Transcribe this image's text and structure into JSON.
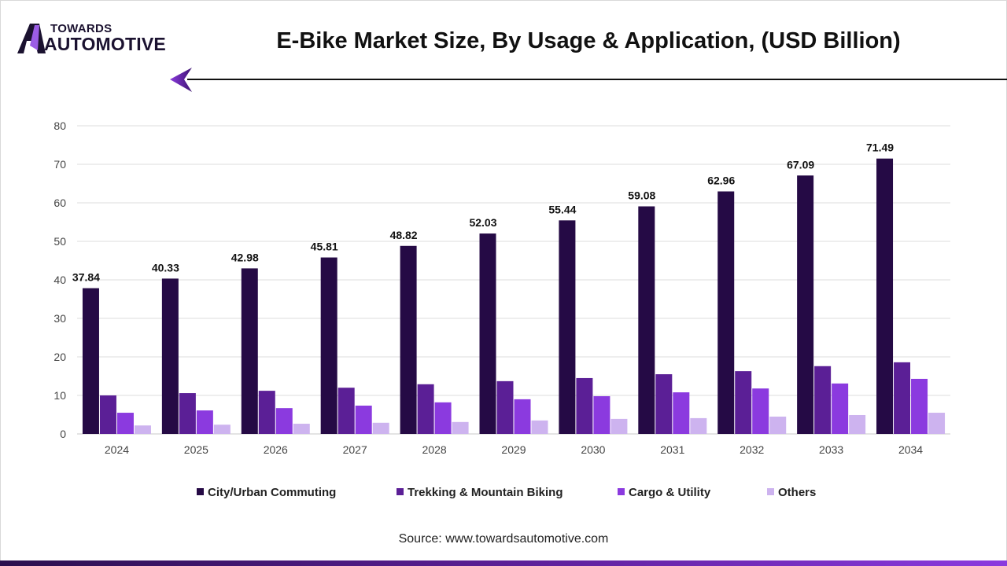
{
  "logo": {
    "line1": "TOWARDS",
    "line2": "AUTOMOTIVE"
  },
  "title": "E-Bike Market Size, By Usage & Application, (USD Billion)",
  "source": "Source: www.towardsautomotive.com",
  "chart_data": {
    "type": "bar",
    "title": "E-Bike Market Size, By Usage & Application, (USD Billion)",
    "xlabel": "",
    "ylabel": "",
    "ylim": [
      0,
      80
    ],
    "yticks": [
      0,
      10,
      20,
      30,
      40,
      50,
      60,
      70,
      80
    ],
    "grid": true,
    "legend_position": "bottom",
    "categories": [
      "2024",
      "2025",
      "2026",
      "2027",
      "2028",
      "2029",
      "2030",
      "2031",
      "2032",
      "2033",
      "2034"
    ],
    "series": [
      {
        "name": "City/Urban Commuting",
        "color": "#250a45",
        "values": [
          37.84,
          40.33,
          42.98,
          45.81,
          48.82,
          52.03,
          55.44,
          59.08,
          62.96,
          67.09,
          71.49
        ],
        "show_labels": true
      },
      {
        "name": "Trekking & Mountain Biking",
        "color": "#5b1f96",
        "values": [
          10.0,
          10.6,
          11.2,
          12.0,
          12.9,
          13.7,
          14.5,
          15.5,
          16.3,
          17.6,
          18.6
        ],
        "show_labels": false
      },
      {
        "name": "Cargo & Utility",
        "color": "#8b3adf",
        "values": [
          5.5,
          6.1,
          6.7,
          7.35,
          8.2,
          9.0,
          9.8,
          10.8,
          11.8,
          13.1,
          14.3
        ],
        "show_labels": false
      },
      {
        "name": "Others",
        "color": "#cdb3ef",
        "values": [
          2.2,
          2.4,
          2.65,
          2.9,
          3.1,
          3.5,
          3.9,
          4.1,
          4.5,
          4.9,
          5.5
        ],
        "show_labels": false
      }
    ]
  }
}
